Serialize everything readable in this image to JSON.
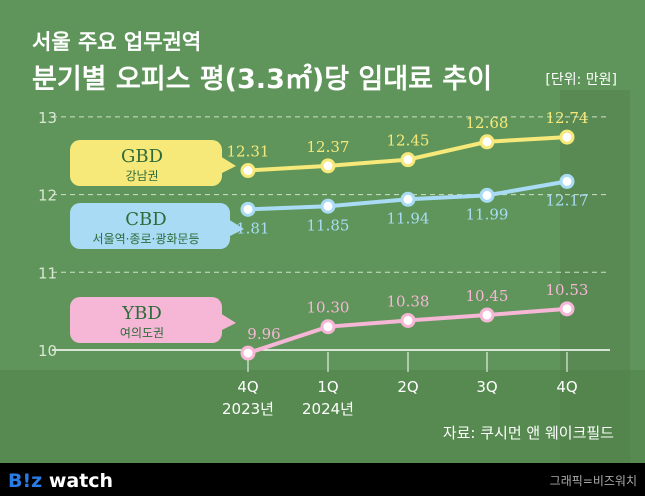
{
  "title_line1": "서울 주요 업무권역",
  "title_line2": "분기별 오피스 평(3.3㎡)당 임대료 추이",
  "unit": "[단위: 만원]",
  "source": "자료: 쿠시먼 앤 웨이크필드",
  "logo": "B!z watch",
  "credit": "그래픽=비즈워치",
  "colors": {
    "background": "#5f955a",
    "gbd": "#f6e97a",
    "cbd": "#a9dcf4",
    "ybd": "#f6b6d6",
    "footer": "#000000"
  },
  "chart_data": {
    "type": "line",
    "categories": [
      "4Q 2023년",
      "1Q 2024년",
      "2Q",
      "3Q",
      "4Q"
    ],
    "x_tick_labels": [
      [
        "4Q",
        "2023년"
      ],
      [
        "1Q",
        "2024년"
      ],
      [
        "2Q",
        ""
      ],
      [
        "3Q",
        ""
      ],
      [
        "4Q",
        ""
      ]
    ],
    "ylim": [
      10,
      13
    ],
    "y_ticks": [
      "10",
      "11",
      "12",
      "13"
    ],
    "grid": true,
    "series": [
      {
        "name": "GBD",
        "sub": "강남권",
        "color": "#f6e97a",
        "values": [
          12.31,
          12.37,
          12.45,
          12.68,
          12.74
        ],
        "labels": [
          "12.31",
          "12.37",
          "12.45",
          "12.68",
          "12.74"
        ]
      },
      {
        "name": "CBD",
        "sub": "서울역·종로·광화문등",
        "color": "#a9dcf4",
        "values": [
          11.81,
          11.85,
          11.94,
          11.99,
          12.17
        ],
        "labels": [
          "11.81",
          "11.85",
          "11.94",
          "11.99",
          "12.17"
        ]
      },
      {
        "name": "YBD",
        "sub": "여의도권",
        "color": "#f6b6d6",
        "values": [
          9.96,
          10.3,
          10.38,
          10.45,
          10.53
        ],
        "labels": [
          "9.96",
          "10.30",
          "10.38",
          "10.45",
          "10.53"
        ]
      }
    ]
  }
}
